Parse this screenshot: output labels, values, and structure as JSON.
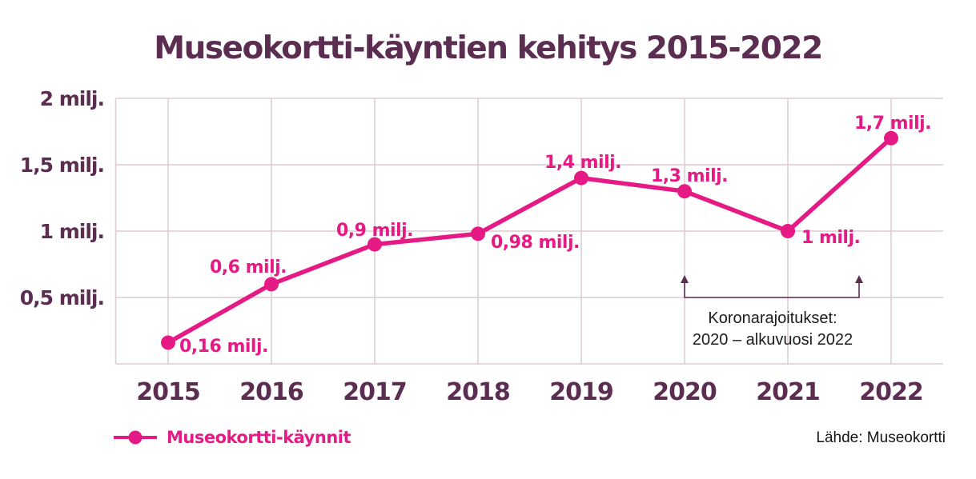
{
  "title": {
    "text": "Museokortti-käyntien kehitys 2015-2022"
  },
  "chart_data": {
    "type": "line",
    "title": "Museokortti-käyntien kehitys 2015-2022",
    "categories": [
      "2015",
      "2016",
      "2017",
      "2018",
      "2019",
      "2020",
      "2021",
      "2022"
    ],
    "series": [
      {
        "name": "Museokortti-käynnit",
        "values": [
          0.16,
          0.6,
          0.9,
          0.98,
          1.4,
          1.3,
          1.0,
          1.7
        ],
        "unit": "milj.",
        "point_labels": [
          "0,16 milj.",
          "0,6 milj.",
          "0,9 milj.",
          "0,98 milj.",
          "1,4 milj.",
          "1,3 milj.",
          "1 milj.",
          "1,7 milj."
        ]
      }
    ],
    "xlabel": "",
    "ylabel": "",
    "ylim": [
      0,
      2
    ],
    "yticks": [
      {
        "value": 0.5,
        "label": "0,5 milj."
      },
      {
        "value": 1,
        "label": "1 milj."
      },
      {
        "value": 1.5,
        "label": "1,5 milj."
      },
      {
        "value": 2,
        "label": "2 milj."
      }
    ],
    "grid": true,
    "legend_position": "bottom-left",
    "annotation": {
      "lines": [
        "Koronarajoitukset:",
        "2020 – alkuvuosi 2022"
      ],
      "span_from_year": "2020",
      "span_to": "alkuvuosi 2022"
    }
  },
  "legend": {
    "label": "Museokortti-käynnit"
  },
  "source": {
    "label": "Lähde: Museokortti"
  },
  "colors": {
    "line_pink": "#e61a84",
    "heading_purple": "#5b2d51",
    "grid": "#d8ccd4",
    "annotation_dark": "#1c1c1c",
    "background": "#ffffff"
  }
}
